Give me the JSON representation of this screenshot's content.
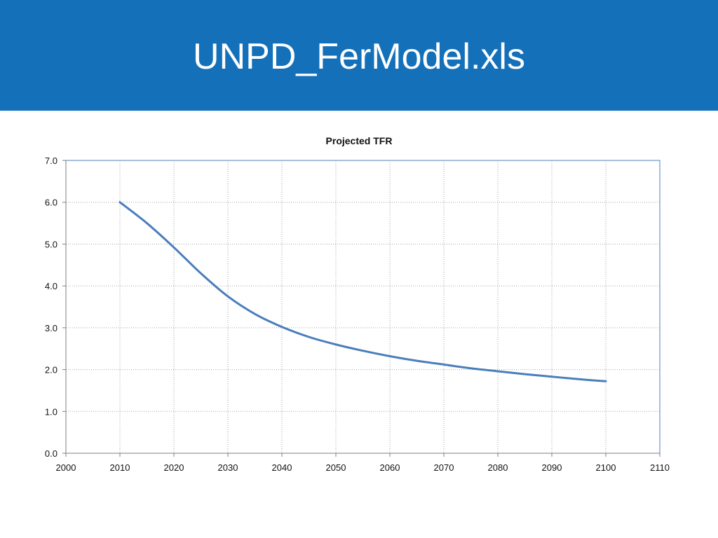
{
  "slide": {
    "title": "UNPD_FerModel.xls"
  },
  "chart_data": {
    "type": "line",
    "title": "Projected TFR",
    "xlabel": "",
    "ylabel": "",
    "xlim": [
      2000,
      2110
    ],
    "ylim": [
      0,
      7
    ],
    "x_ticks": [
      "2000",
      "2010",
      "2020",
      "2030",
      "2040",
      "2050",
      "2060",
      "2070",
      "2080",
      "2090",
      "2100",
      "2110"
    ],
    "y_ticks": [
      "0.0",
      "1.0",
      "2.0",
      "3.0",
      "4.0",
      "5.0",
      "6.0",
      "7.0"
    ],
    "grid": true,
    "legend": "none",
    "series": [
      {
        "color": "#4a7ebb",
        "x": [
          2010,
          2015,
          2020,
          2025,
          2030,
          2035,
          2040,
          2045,
          2050,
          2055,
          2060,
          2065,
          2070,
          2075,
          2080,
          2085,
          2090,
          2095,
          2100
        ],
        "y": [
          6.0,
          5.5,
          4.92,
          4.3,
          3.75,
          3.33,
          3.02,
          2.78,
          2.6,
          2.45,
          2.32,
          2.21,
          2.12,
          2.03,
          1.96,
          1.89,
          1.83,
          1.77,
          1.72
        ]
      }
    ]
  }
}
